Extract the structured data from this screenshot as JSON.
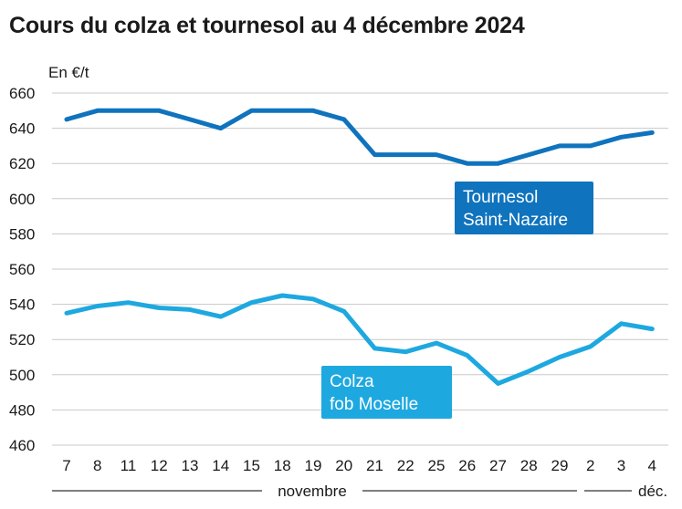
{
  "chart_data": {
    "type": "line",
    "title": "Cours du colza et tournesol au 4 décembre 2024",
    "ylabel": "En €/t",
    "xlabel": "",
    "ylim": [
      460,
      660
    ],
    "yticks": [
      460,
      480,
      500,
      520,
      540,
      560,
      580,
      600,
      620,
      640,
      660
    ],
    "grid": true,
    "categories": [
      "7",
      "8",
      "11",
      "12",
      "13",
      "14",
      "15",
      "18",
      "19",
      "20",
      "21",
      "22",
      "25",
      "26",
      "27",
      "28",
      "29",
      "2",
      "3",
      "4"
    ],
    "month_groups": [
      {
        "label": "novembre",
        "from": 0,
        "to": 16
      },
      {
        "label": "déc.",
        "from": 17,
        "to": 19
      }
    ],
    "series": [
      {
        "name": "Tournesol Saint-Nazaire",
        "label_lines": [
          "Tournesol",
          "Saint-Nazaire"
        ],
        "color": "#0f73bd",
        "values": [
          645,
          650,
          650,
          650,
          645,
          640,
          650,
          650,
          650,
          645,
          625,
          625,
          625,
          620,
          620,
          625,
          630,
          630,
          635,
          637.5
        ]
      },
      {
        "name": "Colza fob Moselle",
        "label_lines": [
          "Colza",
          "fob Moselle"
        ],
        "color": "#1ea8e0",
        "values": [
          535,
          539,
          541,
          538,
          537,
          533,
          541,
          545,
          543,
          536,
          515,
          513,
          518,
          511,
          495,
          502,
          510,
          516,
          529,
          526
        ]
      }
    ]
  }
}
